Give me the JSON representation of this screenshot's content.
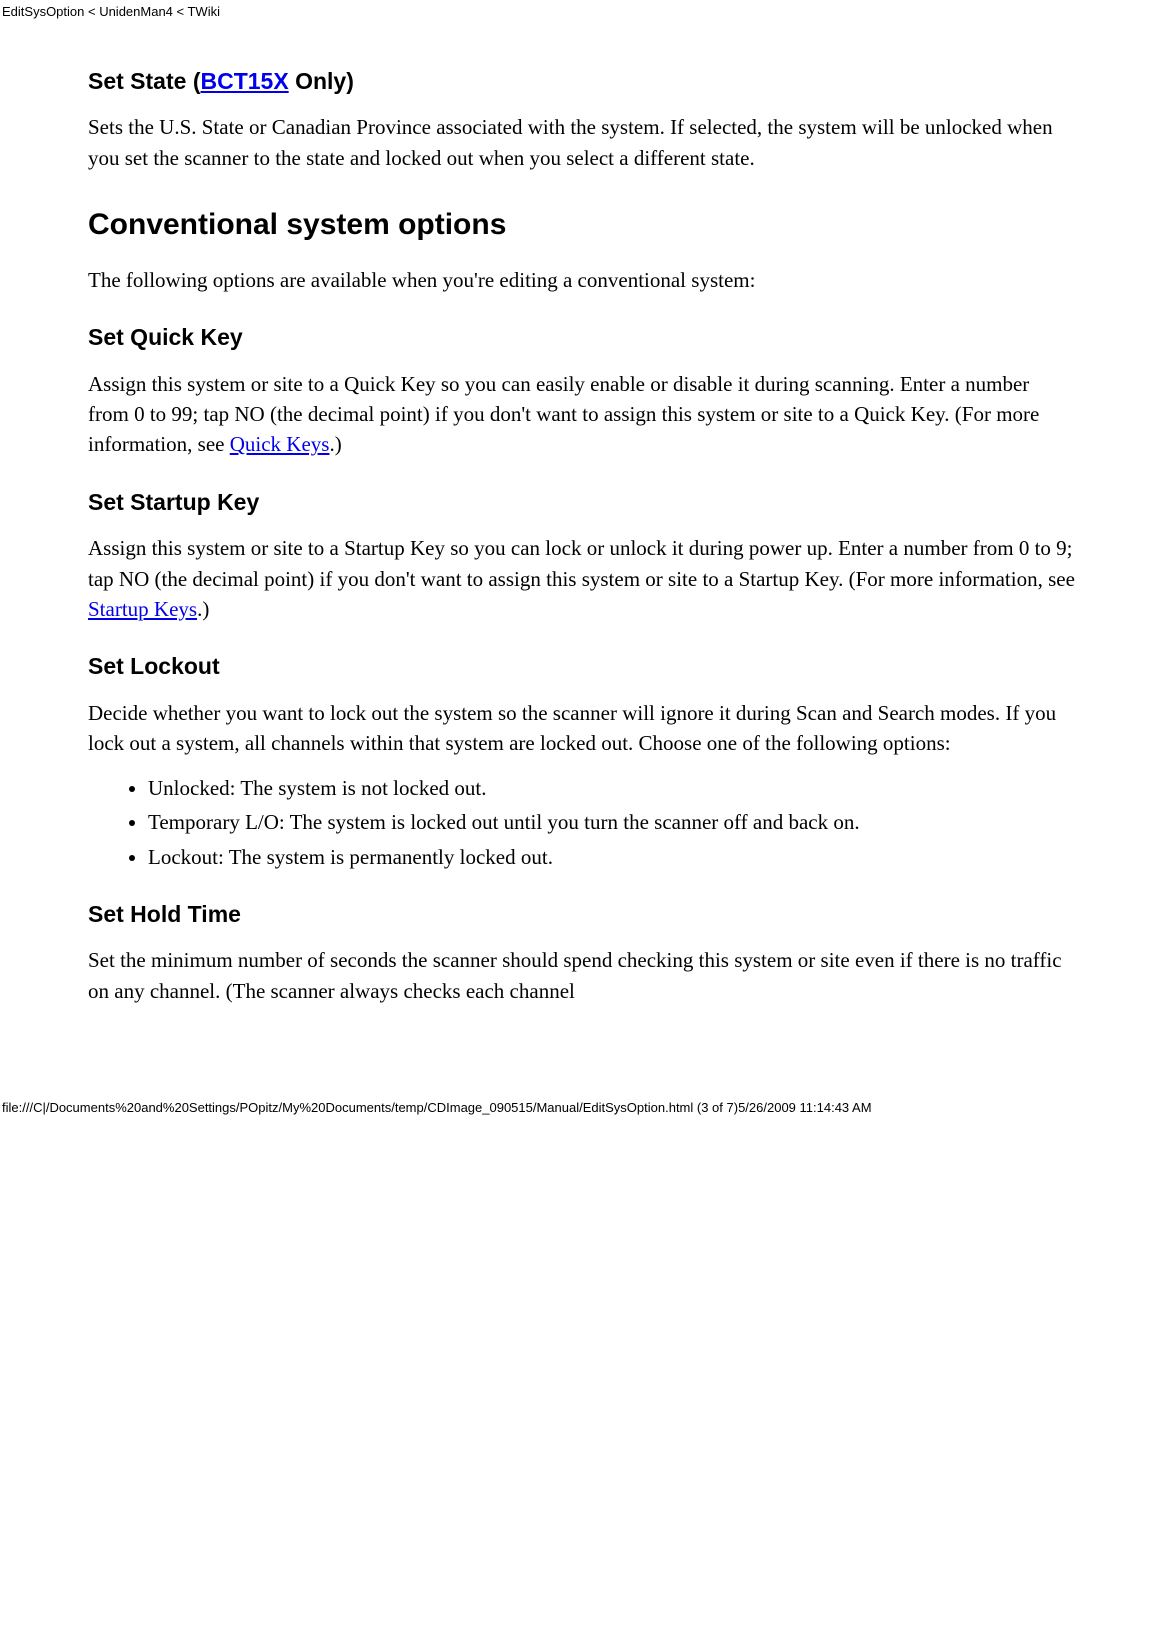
{
  "header_path": "EditSysOption < UnidenMan4 < TWiki",
  "sections": {
    "set_state": {
      "heading_prefix": "Set State (",
      "heading_link": "BCT15X",
      "heading_suffix": " Only)",
      "body": "Sets the U.S. State or Canadian Province associated with the system. If selected, the system will be unlocked when you set the scanner to the state and locked out when you select a different state."
    },
    "conventional": {
      "heading": "Conventional system options",
      "intro": "The following options are available when you're editing a conventional system:"
    },
    "set_quick_key": {
      "heading": "Set Quick Key",
      "body_prefix": "Assign this system or site to a Quick Key so you can easily enable or disable it during scanning. Enter a number from 0 to 99; tap NO (the decimal point) if you don't want to assign this system or site to a Quick Key. (For more information, see ",
      "link": "Quick Keys",
      "body_suffix": ".)"
    },
    "set_startup_key": {
      "heading": "Set Startup Key",
      "body_prefix": "Assign this system or site to a Startup Key so you can lock or unlock it during power up. Enter a number from 0 to 9; tap NO (the decimal point) if you don't want to assign this system or site to a Startup Key. (For more information, see ",
      "link": "Startup Keys",
      "body_suffix": ".)"
    },
    "set_lockout": {
      "heading": "Set Lockout",
      "intro": "Decide whether you want to lock out the system so the scanner will ignore it during Scan and Search modes. If you lock out a system, all channels within that system are locked out. Choose one of the following options:",
      "items": [
        "Unlocked: The system is not locked out.",
        "Temporary L/O: The system is locked out until you turn the scanner off and back on.",
        "Lockout: The system is permanently locked out."
      ]
    },
    "set_hold_time": {
      "heading": "Set Hold Time",
      "body": "Set the minimum number of seconds the scanner should spend checking this system or site even if there is no traffic on any channel. (The scanner always checks each channel"
    }
  },
  "footer": "file:///C|/Documents%20and%20Settings/POpitz/My%20Documents/temp/CDImage_090515/Manual/EditSysOption.html (3 of 7)5/26/2009 11:14:43 AM"
}
